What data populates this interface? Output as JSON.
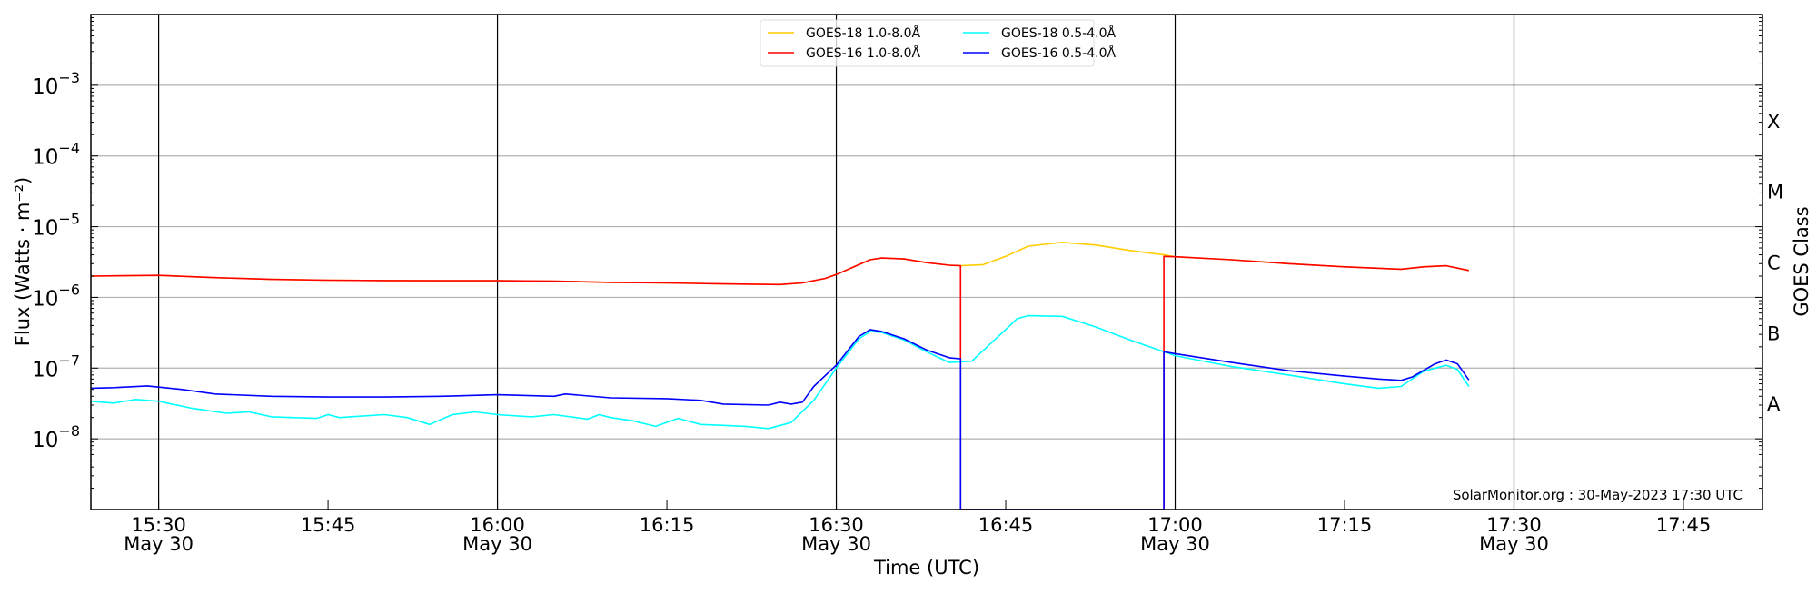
{
  "chart_data": {
    "type": "line",
    "xlabel": "Time (UTC)",
    "ylabel": "Flux (Watts · m⁻²)",
    "ylabel_right": "GOES Class",
    "yscale": "log",
    "ylim": [
      1e-09,
      0.01
    ],
    "xlim": [
      "15:24",
      "17:52"
    ],
    "grid": "horizontal at decades",
    "legend_position": "top-center",
    "ytick_labels": [
      {
        "value": 0.001,
        "base": "10",
        "exp": "−3"
      },
      {
        "value": 0.0001,
        "base": "10",
        "exp": "−4"
      },
      {
        "value": 1e-05,
        "base": "10",
        "exp": "−5"
      },
      {
        "value": 1e-06,
        "base": "10",
        "exp": "−6"
      },
      {
        "value": 1e-07,
        "base": "10",
        "exp": "−7"
      },
      {
        "value": 1e-08,
        "base": "10",
        "exp": "−8"
      }
    ],
    "xtick_labels": [
      {
        "time": "15:30",
        "label": "15:30",
        "date": "May 30"
      },
      {
        "time": "15:45",
        "label": "15:45",
        "date": ""
      },
      {
        "time": "16:00",
        "label": "16:00",
        "date": "May 30"
      },
      {
        "time": "16:15",
        "label": "16:15",
        "date": ""
      },
      {
        "time": "16:30",
        "label": "16:30",
        "date": "May 30"
      },
      {
        "time": "16:45",
        "label": "16:45",
        "date": ""
      },
      {
        "time": "17:00",
        "label": "17:00",
        "date": "May 30"
      },
      {
        "time": "17:15",
        "label": "17:15",
        "date": ""
      },
      {
        "time": "17:30",
        "label": "17:30",
        "date": "May 30"
      },
      {
        "time": "17:45",
        "label": "17:45",
        "date": ""
      }
    ],
    "goes_classes": [
      {
        "label": "X",
        "log_center": -3.5
      },
      {
        "label": "M",
        "log_center": -4.5
      },
      {
        "label": "C",
        "log_center": -5.5
      },
      {
        "label": "B",
        "log_center": -6.5
      },
      {
        "label": "A",
        "log_center": -7.5
      }
    ],
    "annotation": "SolarMonitor.org : 30-May-2023 17:30 UTC",
    "series": [
      {
        "name": "GOES-18 1.0-8.0Å",
        "color": "#ffcc00",
        "points": [
          [
            "15:24",
            2e-06
          ],
          [
            "15:30",
            2.05e-06
          ],
          [
            "15:35",
            1.9e-06
          ],
          [
            "15:40",
            1.8e-06
          ],
          [
            "15:45",
            1.75e-06
          ],
          [
            "15:50",
            1.73e-06
          ],
          [
            "15:55",
            1.72e-06
          ],
          [
            "16:00",
            1.72e-06
          ],
          [
            "16:05",
            1.7e-06
          ],
          [
            "16:10",
            1.63e-06
          ],
          [
            "16:15",
            1.6e-06
          ],
          [
            "16:20",
            1.55e-06
          ],
          [
            "16:25",
            1.52e-06
          ],
          [
            "16:27",
            1.6e-06
          ],
          [
            "16:29",
            1.85e-06
          ],
          [
            "16:30",
            2.1e-06
          ],
          [
            "16:32",
            2.9e-06
          ],
          [
            "16:33",
            3.4e-06
          ],
          [
            "16:34",
            3.6e-06
          ],
          [
            "16:36",
            3.5e-06
          ],
          [
            "16:38",
            3.1e-06
          ],
          [
            "16:40",
            2.85e-06
          ],
          [
            "16:41",
            2.8e-06
          ],
          [
            "16:43",
            2.9e-06
          ],
          [
            "16:45",
            3.8e-06
          ],
          [
            "16:47",
            5.3e-06
          ],
          [
            "16:50",
            6e-06
          ],
          [
            "16:53",
            5.5e-06
          ],
          [
            "16:56",
            4.6e-06
          ],
          [
            "16:59",
            4e-06
          ],
          [
            "17:00",
            3.75e-06
          ],
          [
            "17:05",
            3.4e-06
          ],
          [
            "17:10",
            3e-06
          ],
          [
            "17:15",
            2.7e-06
          ],
          [
            "17:20",
            2.5e-06
          ],
          [
            "17:22",
            2.7e-06
          ],
          [
            "17:24",
            2.8e-06
          ],
          [
            "17:26",
            2.4e-06
          ]
        ]
      },
      {
        "name": "GOES-16 1.0-8.0Å",
        "color": "#ff0000",
        "points": [
          [
            "15:24",
            2e-06
          ],
          [
            "15:30",
            2.05e-06
          ],
          [
            "15:35",
            1.9e-06
          ],
          [
            "15:40",
            1.8e-06
          ],
          [
            "15:45",
            1.75e-06
          ],
          [
            "15:50",
            1.73e-06
          ],
          [
            "15:55",
            1.72e-06
          ],
          [
            "16:00",
            1.72e-06
          ],
          [
            "16:05",
            1.7e-06
          ],
          [
            "16:10",
            1.63e-06
          ],
          [
            "16:15",
            1.6e-06
          ],
          [
            "16:20",
            1.55e-06
          ],
          [
            "16:25",
            1.52e-06
          ],
          [
            "16:27",
            1.6e-06
          ],
          [
            "16:29",
            1.85e-06
          ],
          [
            "16:30",
            2.1e-06
          ],
          [
            "16:32",
            2.9e-06
          ],
          [
            "16:33",
            3.4e-06
          ],
          [
            "16:34",
            3.6e-06
          ],
          [
            "16:36",
            3.5e-06
          ],
          [
            "16:38",
            3.1e-06
          ],
          [
            "16:40",
            2.85e-06
          ],
          [
            "16:41",
            2.8e-06
          ],
          [
            "16:41",
            0
          ],
          [
            "16:59",
            0
          ],
          [
            "16:59",
            3.8e-06
          ],
          [
            "17:00",
            3.75e-06
          ],
          [
            "17:05",
            3.4e-06
          ],
          [
            "17:10",
            3e-06
          ],
          [
            "17:15",
            2.7e-06
          ],
          [
            "17:20",
            2.5e-06
          ],
          [
            "17:22",
            2.7e-06
          ],
          [
            "17:24",
            2.8e-06
          ],
          [
            "17:26",
            2.4e-06
          ]
        ]
      },
      {
        "name": "GOES-18 0.5-4.0Å",
        "color": "#00ffff",
        "points": [
          [
            "15:24",
            3.4e-08
          ],
          [
            "15:26",
            3.2e-08
          ],
          [
            "15:28",
            3.6e-08
          ],
          [
            "15:30",
            3.4e-08
          ],
          [
            "15:33",
            2.7e-08
          ],
          [
            "15:36",
            2.3e-08
          ],
          [
            "15:38",
            2.4e-08
          ],
          [
            "15:40",
            2.05e-08
          ],
          [
            "15:44",
            1.95e-08
          ],
          [
            "15:45",
            2.2e-08
          ],
          [
            "15:46",
            2e-08
          ],
          [
            "15:50",
            2.2e-08
          ],
          [
            "15:52",
            2e-08
          ],
          [
            "15:54",
            1.6e-08
          ],
          [
            "15:56",
            2.2e-08
          ],
          [
            "15:58",
            2.4e-08
          ],
          [
            "16:00",
            2.2e-08
          ],
          [
            "16:03",
            2.05e-08
          ],
          [
            "16:05",
            2.2e-08
          ],
          [
            "16:08",
            1.9e-08
          ],
          [
            "16:09",
            2.2e-08
          ],
          [
            "16:10",
            2e-08
          ],
          [
            "16:12",
            1.8e-08
          ],
          [
            "16:14",
            1.5e-08
          ],
          [
            "16:16",
            1.95e-08
          ],
          [
            "16:18",
            1.6e-08
          ],
          [
            "16:20",
            1.55e-08
          ],
          [
            "16:22",
            1.5e-08
          ],
          [
            "16:24",
            1.4e-08
          ],
          [
            "16:26",
            1.7e-08
          ],
          [
            "16:28",
            3.5e-08
          ],
          [
            "16:30",
            1e-07
          ],
          [
            "16:32",
            2.6e-07
          ],
          [
            "16:33",
            3.3e-07
          ],
          [
            "16:34",
            3.2e-07
          ],
          [
            "16:36",
            2.5e-07
          ],
          [
            "16:38",
            1.7e-07
          ],
          [
            "16:40",
            1.2e-07
          ],
          [
            "16:42",
            1.25e-07
          ],
          [
            "16:44",
            2.5e-07
          ],
          [
            "16:45",
            3.5e-07
          ],
          [
            "16:46",
            5e-07
          ],
          [
            "16:47",
            5.5e-07
          ],
          [
            "16:50",
            5.4e-07
          ],
          [
            "16:53",
            3.8e-07
          ],
          [
            "16:56",
            2.5e-07
          ],
          [
            "16:59",
            1.7e-07
          ],
          [
            "17:00",
            1.5e-07
          ],
          [
            "17:05",
            1.05e-07
          ],
          [
            "17:10",
            8e-08
          ],
          [
            "17:15",
            6e-08
          ],
          [
            "17:18",
            5.2e-08
          ],
          [
            "17:20",
            5.5e-08
          ],
          [
            "17:22",
            9e-08
          ],
          [
            "17:24",
            1.1e-07
          ],
          [
            "17:25",
            9.5e-08
          ],
          [
            "17:26",
            5.5e-08
          ]
        ]
      },
      {
        "name": "GOES-16 0.5-4.0Å",
        "color": "#0000ff",
        "points": [
          [
            "15:24",
            5.2e-08
          ],
          [
            "15:26",
            5.3e-08
          ],
          [
            "15:29",
            5.6e-08
          ],
          [
            "15:32",
            5e-08
          ],
          [
            "15:35",
            4.3e-08
          ],
          [
            "15:40",
            4e-08
          ],
          [
            "15:45",
            3.9e-08
          ],
          [
            "15:50",
            3.9e-08
          ],
          [
            "15:55",
            4e-08
          ],
          [
            "16:00",
            4.2e-08
          ],
          [
            "16:05",
            4e-08
          ],
          [
            "16:06",
            4.3e-08
          ],
          [
            "16:10",
            3.8e-08
          ],
          [
            "16:15",
            3.7e-08
          ],
          [
            "16:18",
            3.5e-08
          ],
          [
            "16:20",
            3.1e-08
          ],
          [
            "16:24",
            3e-08
          ],
          [
            "16:25",
            3.3e-08
          ],
          [
            "16:26",
            3.1e-08
          ],
          [
            "16:27",
            3.3e-08
          ],
          [
            "16:28",
            5.5e-08
          ],
          [
            "16:30",
            1.1e-07
          ],
          [
            "16:32",
            2.8e-07
          ],
          [
            "16:33",
            3.5e-07
          ],
          [
            "16:34",
            3.3e-07
          ],
          [
            "16:36",
            2.6e-07
          ],
          [
            "16:38",
            1.8e-07
          ],
          [
            "16:40",
            1.4e-07
          ],
          [
            "16:41",
            1.35e-07
          ],
          [
            "16:41",
            0
          ],
          [
            "16:59",
            0
          ],
          [
            "16:59",
            1.7e-07
          ],
          [
            "17:00",
            1.6e-07
          ],
          [
            "17:05",
            1.2e-07
          ],
          [
            "17:10",
            9.2e-08
          ],
          [
            "17:15",
            7.7e-08
          ],
          [
            "17:18",
            7e-08
          ],
          [
            "17:20",
            6.7e-08
          ],
          [
            "17:21",
            7.5e-08
          ],
          [
            "17:23",
            1.15e-07
          ],
          [
            "17:24",
            1.3e-07
          ],
          [
            "17:25",
            1.15e-07
          ],
          [
            "17:26",
            6.8e-08
          ]
        ]
      }
    ]
  }
}
